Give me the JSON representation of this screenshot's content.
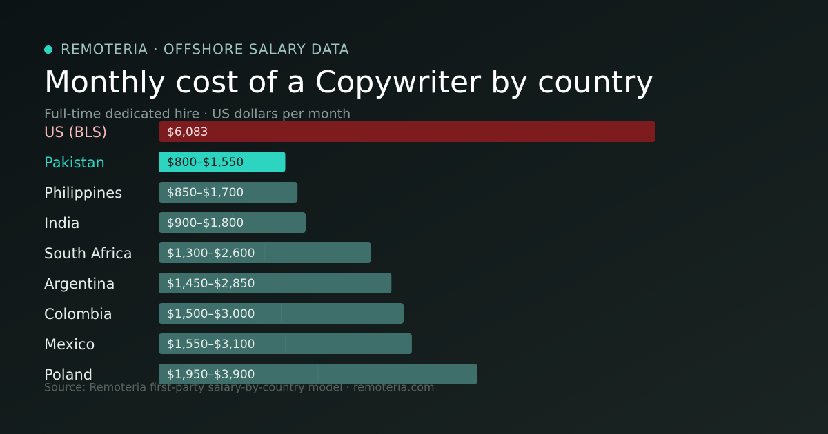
{
  "header": {
    "brand": "REMOTERIA · OFFSHORE SALARY DATA"
  },
  "chart_data": {
    "type": "range-bar",
    "title": "Monthly cost of a Copywriter by country",
    "subtitle": "Full-time dedicated hire · US dollars per month",
    "source": "Source: Remoteria first-party salary-by-country model · remoteria.com",
    "categories": [
      "US (BLS)",
      "Pakistan",
      "Philippines",
      "India",
      "South Africa",
      "Argentina",
      "Colombia",
      "Mexico",
      "Poland"
    ],
    "low": [
      null,
      800,
      850,
      900,
      1300,
      1450,
      1500,
      1550,
      1950
    ],
    "high": [
      6083,
      1550,
      1700,
      1800,
      2600,
      2850,
      3000,
      3100,
      3900
    ],
    "value_labels": [
      "$6,083",
      "$800–$1,550",
      "$850–$1,700",
      "$900–$1,800",
      "$1,300–$2,600",
      "$1,450–$2,850",
      "$1,500–$3,000",
      "$1,550–$3,100",
      "$1,950–$3,900"
    ],
    "colors": [
      "#7d1c1e",
      "#2dd4c0",
      "#3e6f6a",
      "#3e6f6a",
      "#3e6f6a",
      "#3e6f6a",
      "#3e6f6a",
      "#3e6f6a",
      "#3e6f6a"
    ],
    "label_colors": [
      "#f6b8b8",
      "#2dd4c0",
      "#e6ecea",
      "#e6ecea",
      "#e6ecea",
      "#e6ecea",
      "#e6ecea",
      "#e6ecea",
      "#e6ecea"
    ],
    "value_label_colors": [
      "#f2dede",
      "#0f1c1b",
      "#e6ecea",
      "#e6ecea",
      "#e6ecea",
      "#e6ecea",
      "#e6ecea",
      "#e6ecea",
      "#e6ecea"
    ]
  }
}
